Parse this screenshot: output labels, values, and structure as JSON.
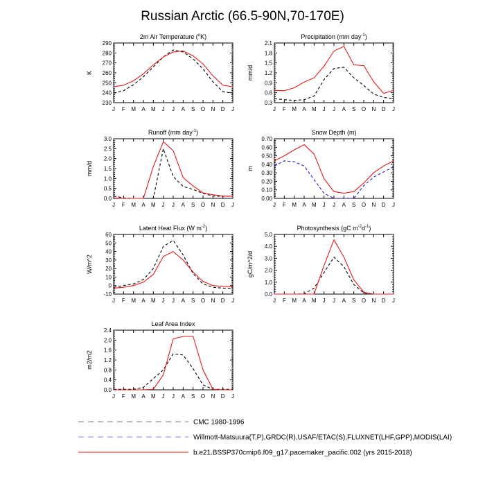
{
  "title": "Russian Arctic (66.5-90N,70-170E)",
  "colors": {
    "obs_black": "#000000",
    "obs_blue": "#1f1fd6",
    "model_red": "#e41a1c"
  },
  "legend": {
    "items": [
      {
        "label": "CMC 1980-1996",
        "color": "#808080",
        "dash": "8,6"
      },
      {
        "label": "Willmott-Matsuura(T,P),GRDC(R),USAF/ETAC(S),FLUXNET(LHF,GPP),MODIS(LAI)",
        "color": "#8080ff",
        "dash": "8,6"
      },
      {
        "label": "b.e21.BSSP370cmip6.f09_g17.pacemaker_pacific.002 (yrs 2015-2018)",
        "color": "#e41a1c",
        "dash": ""
      }
    ]
  },
  "chart_data": [
    {
      "type": "line",
      "title_main": "2m Air Temperature (",
      "title_sup": "o",
      "title_post": "K)",
      "ylabel": "K",
      "categories": [
        "J",
        "F",
        "M",
        "A",
        "M",
        "J",
        "J",
        "A",
        "S",
        "O",
        "N",
        "D",
        "J"
      ],
      "ylim": [
        230,
        290
      ],
      "yticks": [
        "230",
        "240",
        "250",
        "260",
        "270",
        "280",
        "290"
      ],
      "series": [
        {
          "style": "obs_black",
          "values": [
            239.5,
            242,
            248,
            256,
            266,
            276,
            283,
            281,
            274,
            264,
            251,
            241,
            239.5
          ]
        },
        {
          "style": "model_red",
          "values": [
            246,
            247.5,
            252,
            259,
            268,
            276,
            281,
            282,
            277,
            269,
            257,
            247.5,
            246
          ]
        }
      ]
    },
    {
      "type": "line",
      "title_main": "Precipitation (mm day",
      "title_sup": "-1",
      "title_post": ")",
      "ylabel": "mm/d",
      "categories": [
        "J",
        "F",
        "M",
        "A",
        "M",
        "J",
        "J",
        "A",
        "S",
        "O",
        "N",
        "D",
        "J"
      ],
      "ylim": [
        0.3,
        2.1
      ],
      "yticks": [
        "0.3",
        "0.6",
        "0.9",
        "1.2",
        "1.5",
        "1.8",
        "2.1"
      ],
      "series": [
        {
          "style": "obs_black",
          "values": [
            0.42,
            0.39,
            0.37,
            0.39,
            0.5,
            1.0,
            1.33,
            1.37,
            1.05,
            0.82,
            0.56,
            0.46,
            0.42
          ]
        },
        {
          "style": "model_red",
          "values": [
            0.67,
            0.66,
            0.75,
            0.92,
            1.05,
            1.4,
            1.86,
            2.0,
            1.44,
            1.42,
            0.93,
            0.58,
            0.67
          ]
        }
      ]
    },
    {
      "type": "line",
      "title_main": "Runoff (mm day",
      "title_sup": "-1",
      "title_post": ")",
      "ylabel": "mm/d",
      "categories": [
        "J",
        "F",
        "M",
        "A",
        "M",
        "J",
        "J",
        "A",
        "S",
        "O",
        "N",
        "D",
        "J"
      ],
      "ylim": [
        0.0,
        3.0
      ],
      "yticks": [
        "0.0",
        "0.5",
        "1.0",
        "1.5",
        "2.0",
        "2.5",
        "3.0"
      ],
      "series": [
        {
          "style": "obs_black",
          "values": [
            0.12,
            0.02,
            0.0,
            0.0,
            0.0,
            2.5,
            1.1,
            0.6,
            0.45,
            0.25,
            0.12,
            0.1,
            0.12
          ]
        },
        {
          "style": "model_red",
          "values": [
            0.02,
            0.0,
            0.0,
            0.0,
            1.6,
            2.85,
            2.4,
            1.05,
            0.62,
            0.28,
            0.18,
            0.12,
            0.1
          ]
        }
      ]
    },
    {
      "type": "line",
      "title_main": "Snow Depth (m)",
      "title_sup": "",
      "title_post": "",
      "ylabel": "m",
      "categories": [
        "J",
        "F",
        "M",
        "A",
        "M",
        "J",
        "J",
        "A",
        "S",
        "O",
        "N",
        "D",
        "J"
      ],
      "ylim": [
        0.0,
        0.7
      ],
      "yticks": [
        "0.00",
        "0.10",
        "0.20",
        "0.30",
        "0.40",
        "0.50",
        "0.60",
        "0.70"
      ],
      "series": [
        {
          "style": "obs_blue",
          "values": [
            0.38,
            0.44,
            0.43,
            0.38,
            0.22,
            0.06,
            0.0,
            0.0,
            0.0,
            0.15,
            0.25,
            0.31,
            0.37
          ]
        },
        {
          "style": "model_red",
          "values": [
            0.44,
            0.5,
            0.57,
            0.63,
            0.52,
            0.23,
            0.08,
            0.06,
            0.08,
            0.18,
            0.3,
            0.38,
            0.44
          ]
        }
      ]
    },
    {
      "type": "line",
      "title_main": "Latent Heat Flux (W m",
      "title_sup": "-2",
      "title_post": ")",
      "ylabel": "W/m^2",
      "categories": [
        "J",
        "F",
        "M",
        "A",
        "M",
        "J",
        "J",
        "A",
        "S",
        "O",
        "N",
        "D",
        "J"
      ],
      "ylim": [
        -10,
        60
      ],
      "yticks": [
        "-10",
        "0",
        "10",
        "20",
        "30",
        "40",
        "50",
        "60"
      ],
      "series": [
        {
          "style": "obs_black",
          "values": [
            -2,
            0,
            2,
            7,
            20,
            46,
            53,
            36,
            14,
            2,
            -2,
            -3,
            -3
          ]
        },
        {
          "style": "model_red",
          "values": [
            -3,
            -2,
            0,
            4,
            13,
            34,
            40,
            30,
            16,
            5,
            0,
            -1,
            -1
          ]
        }
      ]
    },
    {
      "type": "line",
      "title_main": "Photosynthesis (gC m",
      "title_sup": "-2",
      "title_post": "d",
      "title_sup2": "-1",
      "title_post2": ")",
      "ylabel": "gC/m^2/d",
      "categories": [
        "J",
        "F",
        "M",
        "A",
        "M",
        "J",
        "J",
        "A",
        "S",
        "O",
        "N",
        "D",
        "J"
      ],
      "ylim": [
        0.0,
        5.0
      ],
      "yticks": [
        "0.0",
        "1.0",
        "2.0",
        "3.0",
        "4.0",
        "5.0"
      ],
      "series": [
        {
          "style": "obs_black",
          "values": [
            0.0,
            0.0,
            0.0,
            0.02,
            0.5,
            1.8,
            3.1,
            2.3,
            0.8,
            0.1,
            0.0,
            0.0,
            0.0
          ]
        },
        {
          "style": "model_red",
          "values": [
            0.0,
            0.0,
            0.0,
            0.0,
            0.0,
            2.4,
            4.55,
            3.1,
            1.2,
            0.15,
            0.0,
            0.0,
            0.0
          ]
        }
      ]
    },
    {
      "type": "line",
      "title_main": "Leaf Area Index",
      "title_sup": "",
      "title_post": "",
      "ylabel": "m2/m2",
      "categories": [
        "J",
        "F",
        "M",
        "A",
        "M",
        "J",
        "J",
        "A",
        "S",
        "O",
        "N",
        "D",
        "J"
      ],
      "ylim": [
        0.0,
        2.4
      ],
      "yticks": [
        "0.0",
        "0.4",
        "0.8",
        "1.2",
        "1.6",
        "2.0",
        "2.4"
      ],
      "series": [
        {
          "style": "obs_black",
          "values": [
            0.02,
            0.02,
            0.02,
            0.1,
            0.45,
            0.8,
            1.45,
            1.4,
            0.85,
            0.2,
            0.02,
            0.02,
            0.02
          ]
        },
        {
          "style": "model_red",
          "values": [
            0.0,
            0.0,
            0.0,
            0.0,
            0.02,
            0.6,
            2.05,
            2.15,
            2.15,
            0.8,
            0.02,
            0.0,
            0.0
          ]
        }
      ]
    }
  ]
}
